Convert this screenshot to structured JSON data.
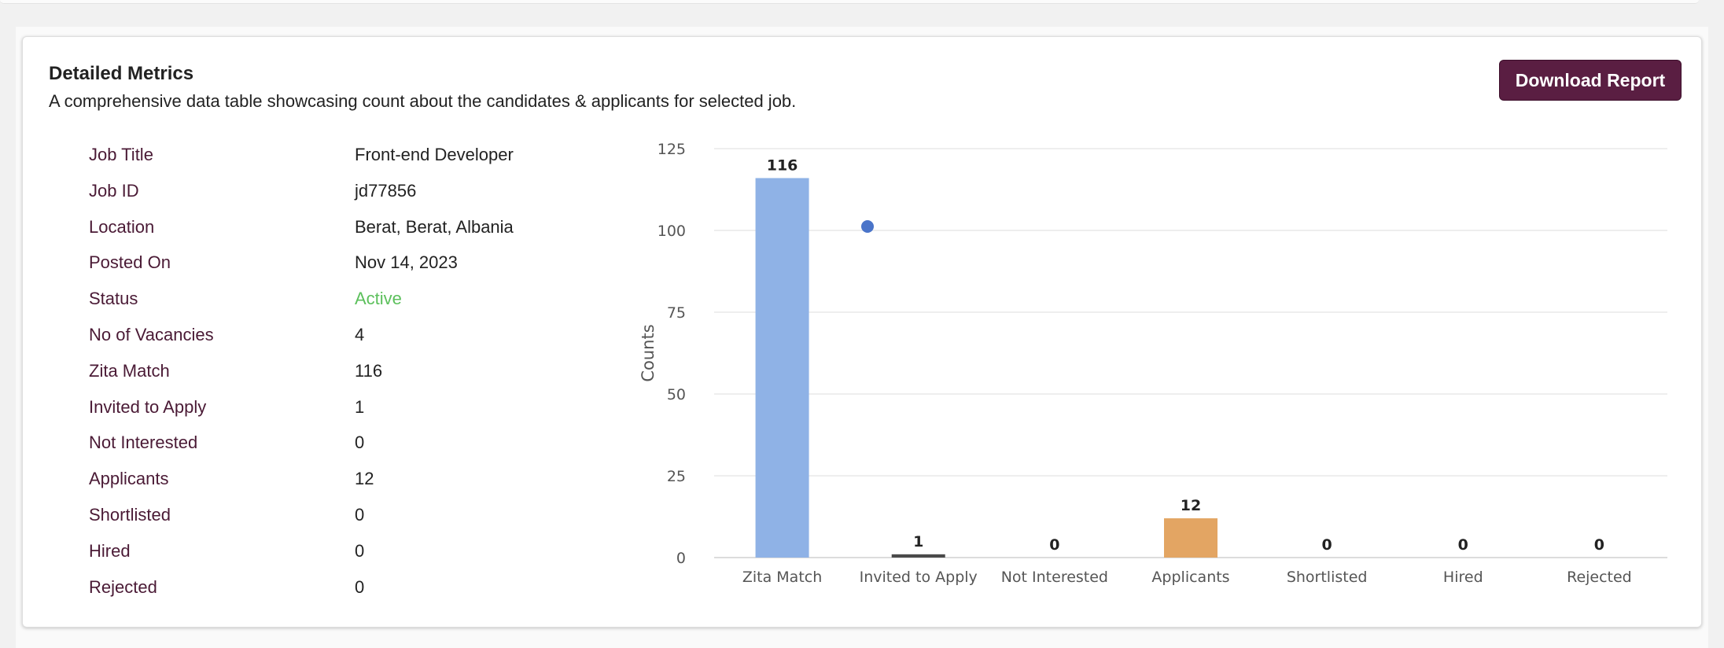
{
  "header": {
    "title": "Detailed Metrics",
    "subtitle": "A comprehensive data table showcasing count about the candidates & applicants for selected job.",
    "download_label": "Download Report"
  },
  "details": [
    {
      "label": "Job Title",
      "value": "Front-end Developer"
    },
    {
      "label": "Job ID",
      "value": "jd77856"
    },
    {
      "label": "Location",
      "value": "Berat, Berat, Albania"
    },
    {
      "label": "Posted On",
      "value": "Nov 14, 2023"
    },
    {
      "label": "Status",
      "value": "Active"
    },
    {
      "label": "No of Vacancies",
      "value": "4"
    },
    {
      "label": "Zita Match",
      "value": "116"
    },
    {
      "label": "Invited to Apply",
      "value": "1"
    },
    {
      "label": "Not Interested",
      "value": "0"
    },
    {
      "label": "Applicants",
      "value": "12"
    },
    {
      "label": "Shortlisted",
      "value": "0"
    },
    {
      "label": "Hired",
      "value": "0"
    },
    {
      "label": "Rejected",
      "value": "0"
    }
  ],
  "colors": {
    "accent": "#5a1e42",
    "status_active": "#5cc05c",
    "label": "#4a1a35"
  },
  "chart_data": {
    "type": "bar",
    "categories": [
      "Zita Match",
      "Invited to Apply",
      "Not Interested",
      "Applicants",
      "Shortlisted",
      "Hired",
      "Rejected"
    ],
    "values": [
      116,
      1,
      0,
      12,
      0,
      0,
      0
    ],
    "bar_colors": [
      "#8fb2e6",
      "#8fb2e6",
      "#8fb2e6",
      "#e3a563",
      "#8fb2e6",
      "#8fb2e6",
      "#8fb2e6"
    ],
    "ylabel": "Counts",
    "xlabel": "",
    "ylim": [
      0,
      125
    ],
    "yticks": [
      0,
      25,
      50,
      75,
      100,
      125
    ],
    "grid": true,
    "marker": {
      "color": "#4a74c9"
    }
  }
}
